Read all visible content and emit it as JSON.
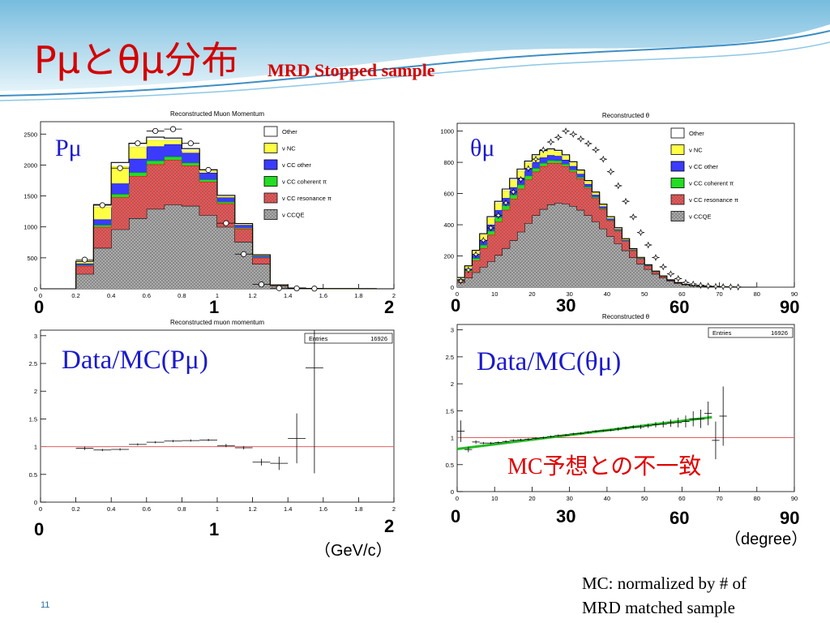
{
  "title": {
    "main": "Pμとθμ分布",
    "sub": "MRD Stopped sample"
  },
  "slide_number": "11",
  "note_lines": [
    "MC: normalized by # of",
    "MRD matched sample"
  ],
  "colors": {
    "title": "#d40000",
    "other": "#ffffff",
    "nc": "#ffff44",
    "cc_other": "#3b3bff",
    "cc_coherent": "#22dd22",
    "cc_resonance": "#ff5555",
    "ccqe": "#b0b0b0",
    "ratio_ref": "#e06060",
    "fit": "#22bb22",
    "annot_blue": "#1a1acc",
    "annot_red": "#e00000"
  },
  "legend": [
    "Other",
    "ν NC",
    "ν CC other",
    "ν CC coherent π",
    "ν CC resonance π",
    "ν CCQE"
  ],
  "axis_annotations": {
    "p_top": [
      "0",
      "1",
      "2"
    ],
    "theta_top": [
      "0",
      "30",
      "60",
      "90"
    ],
    "p_bottom": [
      "0",
      "1",
      "2"
    ],
    "theta_bottom": [
      "0",
      "30",
      "60",
      "90"
    ],
    "p_unit": "（GeV/c）",
    "theta_unit": "（degree）"
  },
  "labels": {
    "p_top": "Pμ",
    "theta_top": "θμ",
    "p_ratio": "Data/MC(Pμ)",
    "theta_ratio": "Data/MC(θμ)",
    "mismatch": "MC予想との不一致"
  },
  "chart_data": [
    {
      "type": "bar",
      "title": "Reconstructed Muon Momentum",
      "stacked": true,
      "xlim": [
        0,
        2
      ],
      "ylim": [
        0,
        2700
      ],
      "xticks": [
        0,
        0.2,
        0.4,
        0.6,
        0.8,
        1,
        1.2,
        1.4,
        1.6,
        1.8,
        2
      ],
      "yticks": [
        0,
        500,
        1000,
        1500,
        2000,
        2500
      ],
      "bin_edges": [
        0,
        0.1,
        0.2,
        0.3,
        0.4,
        0.5,
        0.6,
        0.7,
        0.8,
        0.9,
        1.0,
        1.1,
        1.2,
        1.3,
        1.4,
        1.5,
        1.6,
        1.7,
        1.8,
        1.9,
        2.0
      ],
      "series": [
        {
          "name": "ν CCQE",
          "values": [
            0,
            0,
            240,
            660,
            960,
            1140,
            1290,
            1360,
            1340,
            1190,
            1000,
            760,
            400,
            50,
            10,
            5,
            3,
            2,
            1,
            0
          ]
        },
        {
          "name": "ν CC resonance π",
          "values": [
            0,
            0,
            130,
            340,
            520,
            680,
            720,
            720,
            650,
            540,
            380,
            210,
            100,
            8,
            2,
            1,
            0,
            0,
            0,
            0
          ]
        },
        {
          "name": "ν CC coherent π",
          "values": [
            0,
            0,
            10,
            30,
            50,
            60,
            60,
            55,
            45,
            35,
            25,
            15,
            8,
            1,
            0,
            0,
            0,
            0,
            0,
            0
          ]
        },
        {
          "name": "ν CC other",
          "values": [
            0,
            0,
            30,
            90,
            170,
            220,
            230,
            200,
            160,
            110,
            70,
            45,
            25,
            2,
            0,
            0,
            0,
            0,
            0,
            0
          ]
        },
        {
          "name": "ν NC",
          "values": [
            0,
            0,
            30,
            200,
            280,
            190,
            100,
            60,
            40,
            30,
            20,
            15,
            10,
            2,
            0,
            0,
            0,
            0,
            0,
            0
          ]
        },
        {
          "name": "Other",
          "values": [
            0,
            0,
            5,
            40,
            60,
            60,
            50,
            40,
            30,
            20,
            15,
            10,
            7,
            1,
            0,
            0,
            0,
            0,
            0,
            0
          ]
        }
      ],
      "data_points": {
        "x": [
          0.25,
          0.35,
          0.45,
          0.55,
          0.65,
          0.75,
          0.85,
          0.95,
          1.05,
          1.15,
          1.25,
          1.35,
          1.45,
          1.55
        ],
        "y": [
          470,
          1350,
          1950,
          2350,
          2550,
          2580,
          2350,
          1920,
          1060,
          560,
          70,
          10,
          6,
          3
        ]
      }
    },
    {
      "type": "bar",
      "title": "Reconstructed θ",
      "stacked": true,
      "xlim": [
        0,
        90
      ],
      "ylim": [
        0,
        1050
      ],
      "xticks": [
        0,
        10,
        20,
        30,
        40,
        50,
        60,
        70,
        80,
        90
      ],
      "yticks": [
        0,
        200,
        400,
        600,
        800,
        1000
      ],
      "bin_edges": [
        0,
        2,
        4,
        6,
        8,
        10,
        12,
        14,
        16,
        18,
        20,
        22,
        24,
        26,
        28,
        30,
        32,
        34,
        36,
        38,
        40,
        42,
        44,
        46,
        48,
        50,
        52,
        54,
        56,
        58,
        60,
        62,
        64,
        66,
        68,
        70,
        72,
        74,
        76,
        78,
        80
      ],
      "series": [
        {
          "name": "ν CCQE",
          "values": [
            30,
            60,
            95,
            130,
            165,
            205,
            250,
            300,
            355,
            410,
            460,
            500,
            530,
            540,
            535,
            520,
            495,
            460,
            420,
            375,
            325,
            280,
            235,
            190,
            150,
            115,
            85,
            60,
            40,
            25,
            15,
            9,
            5,
            3,
            2,
            1,
            1,
            0,
            0,
            0
          ]
        },
        {
          "name": "ν CC resonance π",
          "values": [
            15,
            40,
            75,
            120,
            170,
            215,
            245,
            265,
            275,
            280,
            280,
            275,
            265,
            255,
            240,
            220,
            200,
            175,
            150,
            125,
            100,
            80,
            60,
            45,
            32,
            22,
            15,
            10,
            6,
            4,
            2,
            1,
            1,
            0,
            0,
            0,
            0,
            0,
            0,
            0
          ]
        },
        {
          "name": "ν CC coherent π",
          "values": [
            3,
            8,
            15,
            20,
            25,
            28,
            28,
            27,
            26,
            24,
            22,
            20,
            18,
            16,
            14,
            12,
            10,
            8,
            7,
            5,
            4,
            3,
            2,
            2,
            1,
            1,
            0,
            0,
            0,
            0,
            0,
            0,
            0,
            0,
            0,
            0,
            0,
            0,
            0,
            0
          ]
        },
        {
          "name": "ν CC other",
          "values": [
            4,
            10,
            20,
            30,
            40,
            45,
            48,
            48,
            46,
            43,
            40,
            36,
            33,
            30,
            27,
            24,
            21,
            18,
            15,
            12,
            10,
            8,
            6,
            4,
            3,
            2,
            1,
            1,
            0,
            0,
            0,
            0,
            0,
            0,
            0,
            0,
            0,
            0,
            0,
            0
          ]
        },
        {
          "name": "ν NC",
          "values": [
            8,
            15,
            25,
            35,
            42,
            45,
            46,
            45,
            43,
            40,
            37,
            34,
            31,
            28,
            25,
            22,
            20,
            17,
            14,
            12,
            10,
            8,
            6,
            5,
            4,
            3,
            2,
            1,
            1,
            0,
            0,
            0,
            0,
            0,
            0,
            0,
            0,
            0,
            0,
            0
          ]
        },
        {
          "name": "Other",
          "values": [
            2,
            4,
            6,
            8,
            10,
            12,
            12,
            12,
            12,
            11,
            10,
            10,
            9,
            8,
            7,
            6,
            5,
            5,
            4,
            3,
            3,
            2,
            2,
            1,
            1,
            1,
            0,
            0,
            0,
            0,
            0,
            0,
            0,
            0,
            0,
            0,
            0,
            0,
            0,
            0
          ]
        }
      ],
      "data_points": {
        "x": [
          1,
          3,
          5,
          7,
          9,
          11,
          13,
          15,
          17,
          19,
          21,
          23,
          25,
          27,
          29,
          31,
          33,
          35,
          37,
          39,
          41,
          43,
          45,
          47,
          49,
          51,
          53,
          55,
          57,
          59,
          61,
          63,
          65,
          67,
          69,
          71,
          73,
          75
        ],
        "y": [
          40,
          110,
          210,
          300,
          380,
          460,
          540,
          610,
          690,
          760,
          820,
          880,
          930,
          960,
          1000,
          980,
          950,
          920,
          880,
          820,
          740,
          650,
          550,
          450,
          350,
          270,
          190,
          130,
          85,
          55,
          30,
          20,
          12,
          8,
          5,
          3,
          2,
          1
        ]
      }
    },
    {
      "type": "scatter",
      "title": "Reconstructed muon momentum",
      "legend_box": {
        "label": "Entries",
        "value": "16926"
      },
      "xlim": [
        0,
        2
      ],
      "ylim": [
        0,
        3.1
      ],
      "xticks": [
        0,
        0.2,
        0.4,
        0.6,
        0.8,
        1,
        1.2,
        1.4,
        1.6,
        1.8,
        2
      ],
      "yticks": [
        0,
        0.5,
        1,
        1.5,
        2,
        2.5,
        3
      ],
      "reference_line": 1,
      "x": [
        0.25,
        0.35,
        0.45,
        0.55,
        0.65,
        0.75,
        0.85,
        0.95,
        1.05,
        1.15,
        1.25,
        1.35,
        1.45,
        1.55
      ],
      "y": [
        0.97,
        0.94,
        0.95,
        1.04,
        1.08,
        1.1,
        1.11,
        1.12,
        1.02,
        0.98,
        0.72,
        0.7,
        1.15,
        2.42
      ],
      "yerr": [
        0.03,
        0.02,
        0.02,
        0.02,
        0.02,
        0.02,
        0.02,
        0.02,
        0.03,
        0.03,
        0.06,
        0.12,
        0.45,
        1.9
      ]
    },
    {
      "type": "scatter",
      "title": "Reconstructed θ",
      "legend_box": {
        "label": "Entries",
        "value": "16926"
      },
      "xlim": [
        0,
        90
      ],
      "ylim": [
        0,
        3.1
      ],
      "xticks": [
        0,
        10,
        20,
        30,
        40,
        50,
        60,
        70,
        80,
        90
      ],
      "yticks": [
        0,
        0.5,
        1,
        1.5,
        2,
        2.5,
        3
      ],
      "reference_line": 1,
      "fit_line": {
        "x": [
          0,
          68
        ],
        "y": [
          0.79,
          1.38
        ]
      },
      "x": [
        1,
        3,
        5,
        7,
        9,
        11,
        13,
        15,
        17,
        19,
        21,
        23,
        25,
        27,
        29,
        31,
        33,
        35,
        37,
        39,
        41,
        43,
        45,
        47,
        49,
        51,
        53,
        55,
        57,
        59,
        61,
        63,
        65,
        67,
        69,
        71
      ],
      "y": [
        1.12,
        0.78,
        0.92,
        0.9,
        0.9,
        0.91,
        0.93,
        0.95,
        0.96,
        0.97,
        0.99,
        1.0,
        1.02,
        1.04,
        1.05,
        1.07,
        1.08,
        1.1,
        1.12,
        1.13,
        1.14,
        1.16,
        1.18,
        1.2,
        1.2,
        1.22,
        1.24,
        1.25,
        1.27,
        1.28,
        1.3,
        1.35,
        1.35,
        1.45,
        0.95,
        1.4
      ],
      "yerr": [
        0.2,
        0.05,
        0.03,
        0.02,
        0.02,
        0.02,
        0.02,
        0.02,
        0.02,
        0.02,
        0.02,
        0.02,
        0.02,
        0.02,
        0.02,
        0.02,
        0.02,
        0.02,
        0.02,
        0.02,
        0.02,
        0.03,
        0.03,
        0.03,
        0.04,
        0.04,
        0.05,
        0.06,
        0.07,
        0.09,
        0.11,
        0.14,
        0.17,
        0.22,
        0.35,
        0.55
      ]
    }
  ]
}
